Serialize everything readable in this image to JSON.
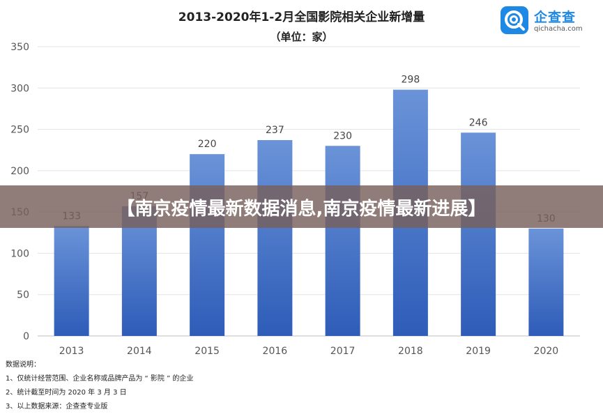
{
  "chart_data": {
    "type": "bar",
    "title": "2013-2020年1-2月全国影院相关企业新增量",
    "subtitle": "（单位：家）",
    "categories": [
      "2013",
      "2014",
      "2015",
      "2016",
      "2017",
      "2018",
      "2019",
      "2020"
    ],
    "values": [
      133,
      157,
      220,
      237,
      230,
      298,
      246,
      130
    ],
    "ylim": [
      0,
      350
    ],
    "yticks": [
      0,
      50,
      100,
      150,
      200,
      250,
      300,
      350
    ],
    "grid": true,
    "bar_color_top": "#6a93d8",
    "bar_color_bottom": "#2e5cb8"
  },
  "logo": {
    "name": "企查查",
    "domain": "qichacha.com",
    "color": "#1e88e5",
    "icon": "qichacha-logo-icon"
  },
  "notes": {
    "heading": "数据说明：",
    "items": [
      "1、仅统计经营范围、企业名称或品牌产品为 “ 影院 ” 的企业",
      "2、统计截至时间为 2020 年 3 月 3 日",
      "3、以上数据来源：企查查专业版"
    ]
  },
  "banner": {
    "text": "【南京疫情最新数据消息,南京疫情最新进展】",
    "background": "#785f5a"
  }
}
